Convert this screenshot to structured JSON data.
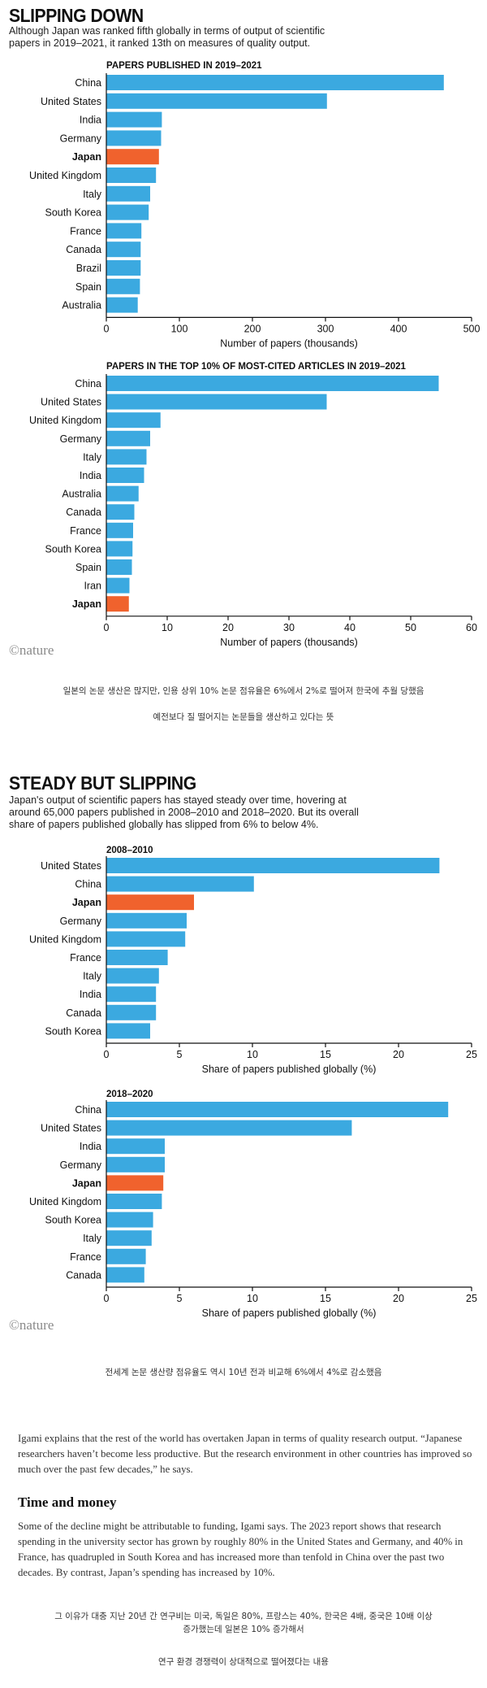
{
  "section1": {
    "title": "SLIPPING DOWN",
    "subtitle_line1": "Although Japan was ranked fifth globally in terms of output of scientific",
    "subtitle_line2": "papers in 2019–2021, it ranked 13th on measures of quality output.",
    "credit": "©nature",
    "note_ko_1": "일본의 논문 생산은 많지만, 인용 상위 10% 논문 점유율은 6%에서 2%로 떨어져 한국에 추월 당했음",
    "note_ko_2": "예전보다 질 떨어지는 논문들을 생산하고 있다는 뜻"
  },
  "section2": {
    "title": "STEADY BUT SLIPPING",
    "subtitle_line1": "Japan's output of scientific papers has stayed steady over time, hovering at",
    "subtitle_line2": "around 65,000 papers published in 2008–2010 and 2018–2020. But its overall",
    "subtitle_line3": "share of papers published globally has slipped from 6% to below 4%.",
    "credit": "©nature",
    "note_ko": "전세계 논문 생산량 점유율도 역시 10년 전과 비교해 6%에서 4%로 감소했음"
  },
  "article": {
    "para1": "Igami explains that the rest of the world has overtaken Japan in terms of quality research output. “Japanese researchers haven’t become less productive. But the research environment in other countries has improved so much over the past few decades,” he says.",
    "heading": "Time and money",
    "para2": "Some of the decline might be attributable to funding, Igami says. The 2023 report shows that research spending in the university sector has grown by roughly 80% in the United States and Germany, and 40% in France, has quadrupled in South Korea and has increased more than tenfold in China over the past two decades. By contrast, Japan’s spending has increased by 10%.",
    "note_ko_1": "그 이유가 대충 지난 20년 간 연구비는 미국, 독일은 80%, 프랑스는 40%, 한국은 4배, 중국은 10배 이상",
    "note_ko_2": "증가했는데 일본은 10% 증가해서",
    "note_ko_3": "연구 환경 경쟁력이 상대적으로 떨어졌다는 내용"
  },
  "colors": {
    "bar": "#3ba9e0",
    "highlight": "#f0622d",
    "axis": "#111111"
  },
  "chart_data": [
    {
      "type": "bar",
      "title": "PAPERS PUBLISHED IN 2019–2021",
      "xlabel": "Number of papers (thousands)",
      "xlim": [
        0,
        500
      ],
      "ticks": [
        0,
        100,
        200,
        300,
        400,
        500
      ],
      "highlight": "Japan",
      "categories": [
        "China",
        "United States",
        "India",
        "Germany",
        "Japan",
        "United Kingdom",
        "Italy",
        "South Korea",
        "France",
        "Canada",
        "Brazil",
        "Spain",
        "Australia"
      ],
      "values": [
        462,
        302,
        76,
        75,
        72,
        68,
        60,
        58,
        48,
        47,
        47,
        46,
        43
      ]
    },
    {
      "type": "bar",
      "title": "PAPERS IN THE TOP 10% OF MOST-CITED ARTICLES IN 2019–2021",
      "xlabel": "Number of papers (thousands)",
      "xlim": [
        0,
        60
      ],
      "ticks": [
        0,
        10,
        20,
        30,
        40,
        50,
        60
      ],
      "highlight": "Japan",
      "categories": [
        "China",
        "United States",
        "United Kingdom",
        "Germany",
        "Italy",
        "India",
        "Australia",
        "Canada",
        "France",
        "South Korea",
        "Spain",
        "Iran",
        "Japan"
      ],
      "values": [
        54.6,
        36.2,
        8.9,
        7.2,
        6.6,
        6.2,
        5.3,
        4.6,
        4.4,
        4.3,
        4.2,
        3.8,
        3.7
      ]
    },
    {
      "type": "bar",
      "title": "2008–2010",
      "xlabel": "Share of papers published globally (%)",
      "xlim": [
        0,
        25
      ],
      "ticks": [
        0,
        5,
        10,
        15,
        20,
        25
      ],
      "highlight": "Japan",
      "categories": [
        "United States",
        "China",
        "Japan",
        "Germany",
        "United Kingdom",
        "France",
        "Italy",
        "India",
        "Canada",
        "South Korea"
      ],
      "values": [
        22.8,
        10.1,
        6.0,
        5.5,
        5.4,
        4.2,
        3.6,
        3.4,
        3.4,
        3.0
      ]
    },
    {
      "type": "bar",
      "title": "2018–2020",
      "xlabel": "Share of papers published globally (%)",
      "xlim": [
        0,
        25
      ],
      "ticks": [
        0,
        5,
        10,
        15,
        20,
        25
      ],
      "highlight": "Japan",
      "categories": [
        "China",
        "United States",
        "India",
        "Germany",
        "Japan",
        "United Kingdom",
        "South Korea",
        "Italy",
        "France",
        "Canada"
      ],
      "values": [
        23.4,
        16.8,
        4.0,
        4.0,
        3.9,
        3.8,
        3.2,
        3.1,
        2.7,
        2.6
      ]
    }
  ]
}
